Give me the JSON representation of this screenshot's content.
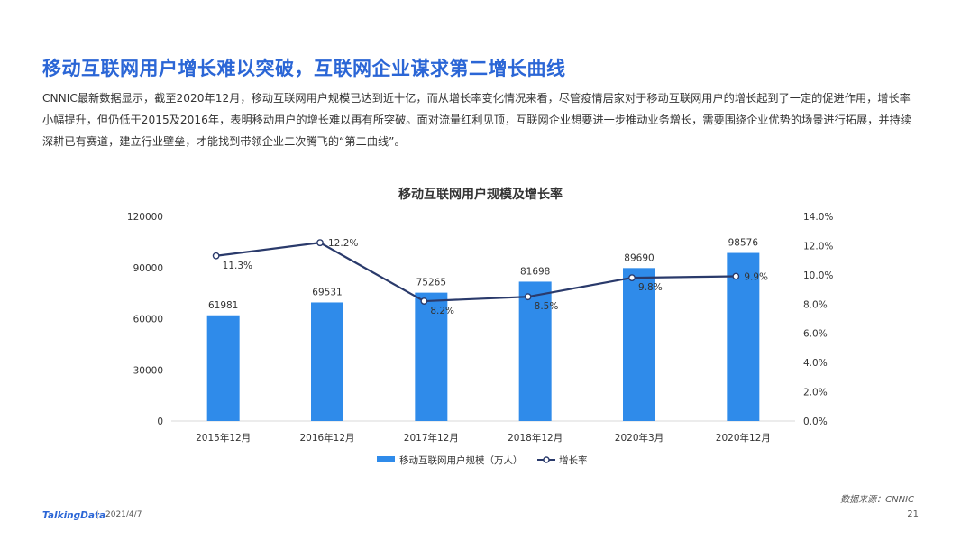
{
  "header": {
    "title": "移动互联网用户增长难以突破，互联网企业谋求第二增长曲线",
    "description": "CNNIC最新数据显示，截至2020年12月，移动互联网用户规模已达到近十亿，而从增长率变化情况来看，尽管疫情居家对于移动互联网用户的增长起到了一定的促进作用，增长率小幅提升，但仍低于2015及2016年，表明移动用户的增长难以再有所突破。面对流量红利见顶，互联网企业想要进一步推动业务增长，需要围绕企业优势的场景进行拓展，并持续深耕已有赛道，建立行业壁垒，才能找到带领企业二次腾飞的“第二曲线”。"
  },
  "colors": {
    "bar": "#2f8bea",
    "line": "#2a3a6b",
    "title": "#2b66d6"
  },
  "chart_data": {
    "type": "bar",
    "title": "移动互联网用户规模及增长率",
    "categories": [
      "2015年12月",
      "2016年12月",
      "2017年12月",
      "2018年12月",
      "2020年3月",
      "2020年12月"
    ],
    "series": [
      {
        "name": "移动互联网用户规模（万人）",
        "type": "bar",
        "axis": "left",
        "values": [
          61981,
          69531,
          75265,
          81698,
          89690,
          98576
        ],
        "labels": [
          "61981",
          "69531",
          "75265",
          "81698",
          "89690",
          "98576"
        ]
      },
      {
        "name": "增长率",
        "type": "line",
        "axis": "right",
        "values": [
          11.3,
          12.2,
          8.2,
          8.5,
          9.8,
          9.9
        ],
        "labels": [
          "11.3%",
          "12.2%",
          "8.2%",
          "8.5%",
          "9.8%",
          "9.9%"
        ]
      }
    ],
    "y_left": {
      "min": 0,
      "max": 120000,
      "ticks": [
        0,
        30000,
        60000,
        90000,
        120000
      ],
      "tick_labels": [
        "0",
        "30000",
        "60000",
        "90000",
        "120000"
      ]
    },
    "y_right": {
      "min": 0,
      "max": 14,
      "ticks": [
        0,
        2,
        4,
        6,
        8,
        10,
        12,
        14
      ],
      "tick_labels": [
        "0.0%",
        "2.0%",
        "4.0%",
        "6.0%",
        "8.0%",
        "10.0%",
        "12.0%",
        "14.0%"
      ]
    },
    "grid": false,
    "legend": "bottom"
  },
  "source": "数据来源：CNNIC",
  "footer": {
    "brand": "TalkingData",
    "date": "2021/4/7",
    "page_number": "21"
  }
}
